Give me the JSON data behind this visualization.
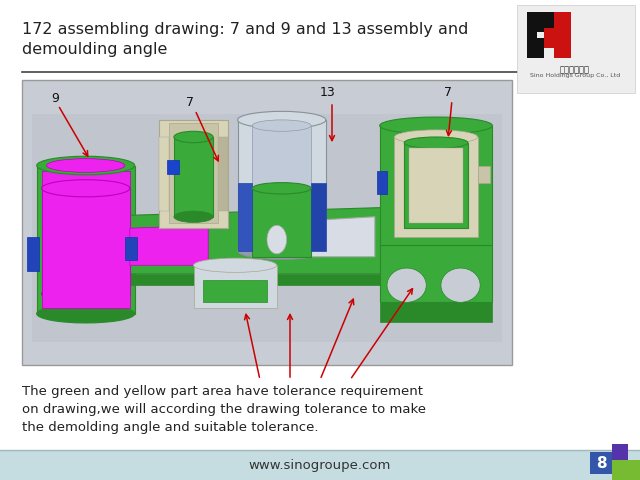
{
  "title_line1": "172 assembling drawing: 7 and 9 and 13 assembly and",
  "title_line2": "demoulding angle",
  "title_fontsize": 11.5,
  "title_color": "#222222",
  "bg_color": "#ffffff",
  "separator_color": "#444444",
  "body_text_line1": "The green and yellow part area have tolerance requirement",
  "body_text_line2": "on drawing,we will according the drawing tolerance to make",
  "body_text_line3": "the demolding angle and suitable tolerance.",
  "body_fontsize": 9.5,
  "footer_text": "www.sinogroupe.com",
  "footer_fontsize": 9.5,
  "footer_color": "#333333",
  "footer_bg": "#c5dde0",
  "image_bg": "#c8cdd5",
  "arrow_color": "#cc0000",
  "page_number": "8",
  "logo_text1": "西诺控股集团",
  "logo_text2": "Sino Holdings Group Co., Ltd",
  "green_fill": "#3aaa3a",
  "green_dark": "#2a8a2a",
  "green_light": "#90ee90",
  "magenta_fill": "#ee22ee",
  "magenta_dark": "#bb00bb",
  "gray_fill": "#b0bcc8",
  "gray_light": "#d0d8e0",
  "white_fill": "#d8dde5",
  "blue_edge": "#3366cc",
  "beige_fill": "#d8d4b8",
  "page_blue": "#3355aa",
  "page_purple": "#5533aa",
  "page_green": "#77bb33"
}
